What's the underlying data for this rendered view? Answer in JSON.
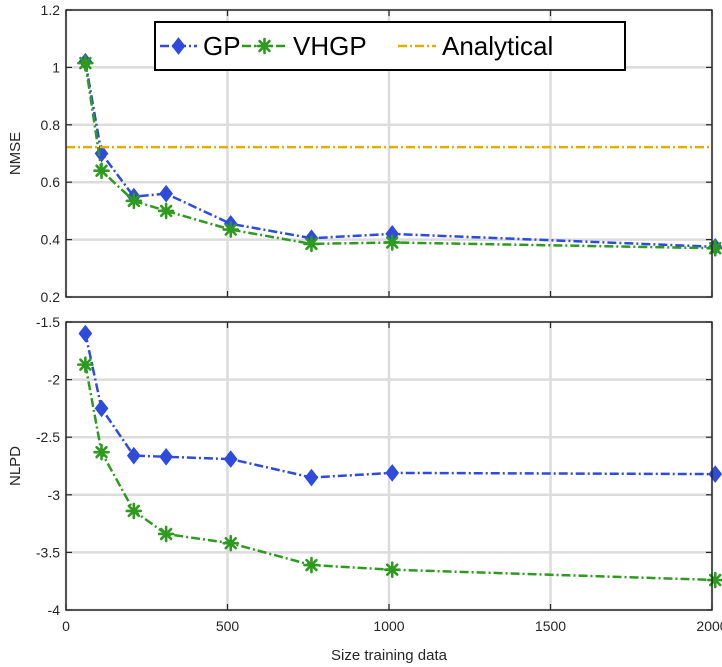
{
  "chart_data": [
    {
      "type": "line",
      "ylabel": "NMSE",
      "xlabel": "",
      "xlim": [
        0,
        2000
      ],
      "ylim": [
        0.2,
        1.2
      ],
      "xticks": [
        0,
        500,
        1000,
        1500,
        2000
      ],
      "xtick_labels": [
        "",
        "",
        "",
        "",
        ""
      ],
      "yticks": [
        0.2,
        0.4,
        0.6,
        0.8,
        1.0,
        1.2
      ],
      "ytick_labels": [
        "0.2",
        "0.4",
        "0.6",
        "0.8",
        "1",
        "1.2"
      ],
      "grid": true,
      "legend": {
        "placement": "top",
        "entries": [
          "GP",
          "VHGP",
          "Analytical"
        ]
      },
      "x": [
        60,
        110,
        210,
        310,
        510,
        760,
        1010,
        2010
      ],
      "series": [
        {
          "name": "GP",
          "color": "#2f4bdb",
          "marker": "diamond",
          "values": [
            1.02,
            0.7,
            0.55,
            0.56,
            0.455,
            0.405,
            0.42,
            0.375
          ]
        },
        {
          "name": "VHGP",
          "color": "#2e9a1f",
          "marker": "asterisk",
          "values": [
            1.015,
            0.64,
            0.535,
            0.5,
            0.435,
            0.385,
            0.39,
            0.37
          ]
        },
        {
          "name": "Analytical",
          "color": "#e0b000",
          "marker": "none",
          "constant": 0.722
        }
      ]
    },
    {
      "type": "line",
      "ylabel": "NLPD",
      "xlabel": "Size training data",
      "xlim": [
        0,
        2000
      ],
      "ylim": [
        -4,
        -1.5
      ],
      "xticks": [
        0,
        500,
        1000,
        1500,
        2000
      ],
      "xtick_labels": [
        "0",
        "500",
        "1000",
        "1500",
        "2000"
      ],
      "yticks": [
        -4,
        -3.5,
        -3,
        -2.5,
        -2,
        -1.5
      ],
      "ytick_labels": [
        "-4",
        "-3.5",
        "-3",
        "-2.5",
        "-2",
        "-1.5"
      ],
      "grid": true,
      "x": [
        60,
        110,
        210,
        310,
        510,
        760,
        1010,
        2010
      ],
      "series": [
        {
          "name": "GP",
          "color": "#2f4bdb",
          "marker": "diamond",
          "values": [
            -1.6,
            -2.25,
            -2.66,
            -2.67,
            -2.69,
            -2.85,
            -2.81,
            -2.82
          ]
        },
        {
          "name": "VHGP",
          "color": "#2e9a1f",
          "marker": "asterisk",
          "values": [
            -1.87,
            -2.63,
            -3.14,
            -3.34,
            -3.42,
            -3.61,
            -3.65,
            -3.74
          ]
        }
      ]
    }
  ]
}
